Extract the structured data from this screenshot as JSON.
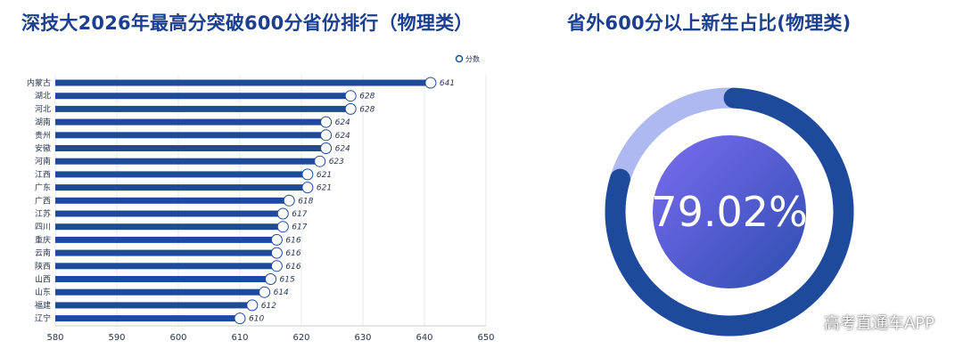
{
  "chart_data": [
    {
      "type": "bar",
      "orientation": "horizontal",
      "title": "深技大2026年最高分突破600分省份排行（物理类）",
      "legend": {
        "label": "分数",
        "placement": "top-right"
      },
      "categories": [
        "内蒙古",
        "湖北",
        "河北",
        "湖南",
        "贵州",
        "安徽",
        "河南",
        "江西",
        "广东",
        "广西",
        "江苏",
        "四川",
        "重庆",
        "云南",
        "陕西",
        "山西",
        "山东",
        "福建",
        "辽宁"
      ],
      "values": [
        641,
        628,
        628,
        624,
        624,
        624,
        623,
        621,
        621,
        618,
        617,
        617,
        616,
        616,
        616,
        615,
        614,
        612,
        610
      ],
      "xlim": [
        580,
        650
      ],
      "xticks": [
        580,
        590,
        600,
        610,
        620,
        630,
        640,
        650
      ],
      "grid": true,
      "colors": {
        "bar": "#1e4a9c",
        "marker_fill": "#ffffff",
        "marker_stroke": "#1e4a9c"
      }
    },
    {
      "type": "pie",
      "style": "donut",
      "title": "省外600分以上新生占比(物理类)",
      "value": 79.02,
      "display": "79.02%",
      "colors": {
        "primary": "#1e4a9c",
        "remainder": "#aeb9f2",
        "center_start": "#7b6cf0",
        "center_end": "#2d4db0"
      }
    }
  ],
  "watermark": "高考直通车APP"
}
